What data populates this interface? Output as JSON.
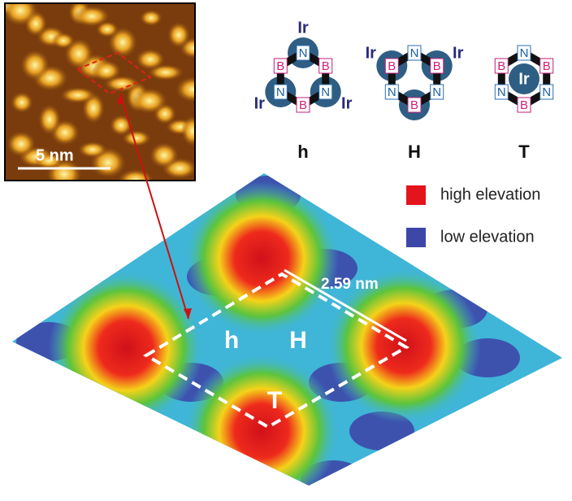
{
  "stm_image": {
    "scale_label": "5 nm"
  },
  "rings": [
    {
      "label": "h",
      "atoms": [
        "N",
        "B",
        "N",
        "B",
        "N",
        "B"
      ],
      "ir_labels": [
        "Ir",
        "Ir",
        "Ir"
      ]
    },
    {
      "label": "H",
      "atoms": [
        "N",
        "B",
        "N",
        "B",
        "N",
        "B"
      ],
      "ir_labels": [
        "Ir",
        "Ir"
      ]
    },
    {
      "label": "T",
      "atoms": [
        "N",
        "B",
        "N",
        "B",
        "N",
        "B"
      ],
      "ir_labels": [
        "Ir"
      ]
    }
  ],
  "legend": [
    {
      "label": "high elevation",
      "color": "#e3141c"
    },
    {
      "label": "low elevation",
      "color": "#3d47a8"
    }
  ],
  "map": {
    "distance_label": "2.59 nm",
    "site_labels": [
      "h",
      "H",
      "T"
    ]
  }
}
